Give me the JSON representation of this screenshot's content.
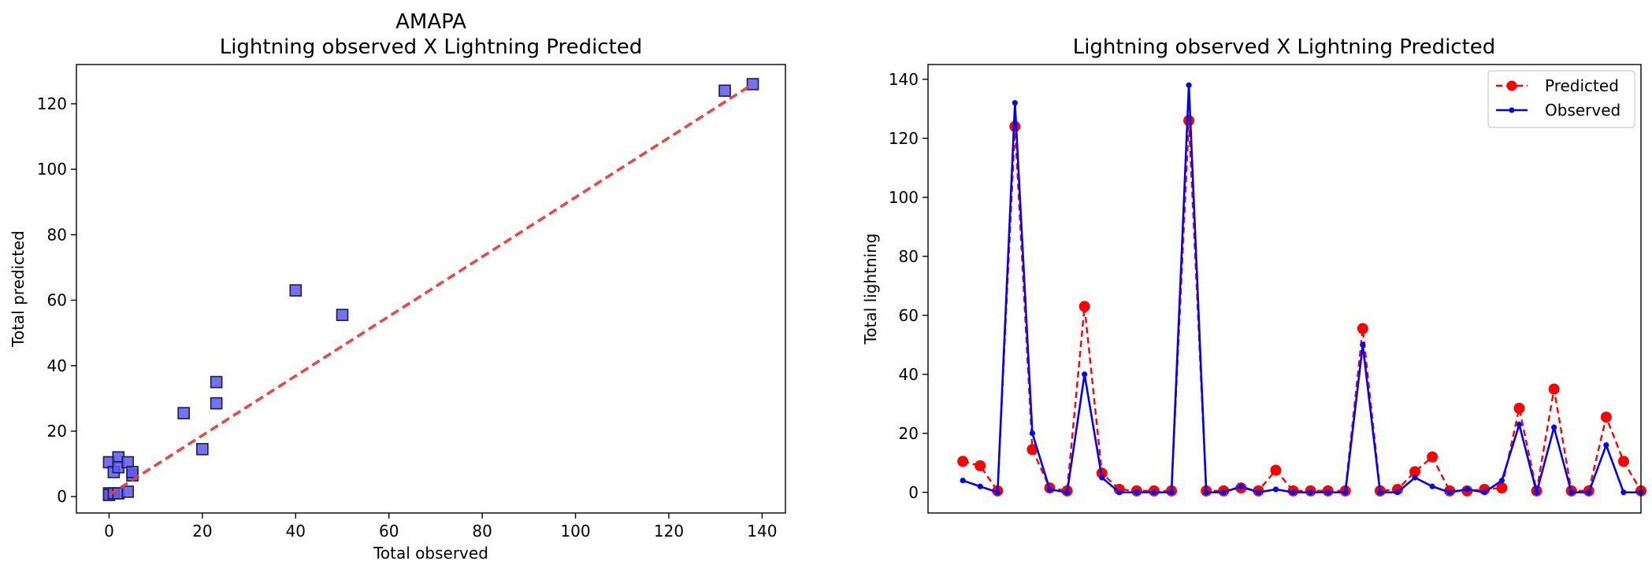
{
  "chart_data": [
    {
      "type": "scatter",
      "title": "AMAPA",
      "subtitle": "Lightning observed X Lightning Predicted",
      "xlabel": "Total observed",
      "ylabel": "Total predicted",
      "xlim": [
        -7,
        145
      ],
      "ylim": [
        -5,
        132
      ],
      "xticks": [
        0,
        20,
        40,
        60,
        80,
        100,
        120,
        140
      ],
      "yticks": [
        0,
        20,
        40,
        60,
        80,
        100,
        120
      ],
      "grid": false,
      "marker_color": "#5a5af0",
      "fit_line_color": "#ee3b3b",
      "fit_line": {
        "x": [
          0,
          138
        ],
        "y": [
          0.5,
          126
        ]
      },
      "points": [
        {
          "x": 0,
          "y": 10.5
        },
        {
          "x": 0,
          "y": 1
        },
        {
          "x": 0,
          "y": 0.5
        },
        {
          "x": 1,
          "y": 1
        },
        {
          "x": 1,
          "y": 7.5
        },
        {
          "x": 2,
          "y": 12
        },
        {
          "x": 2,
          "y": 9
        },
        {
          "x": 2,
          "y": 1
        },
        {
          "x": 4,
          "y": 10.5
        },
        {
          "x": 4,
          "y": 1.5
        },
        {
          "x": 5,
          "y": 6.5
        },
        {
          "x": 5,
          "y": 7.5
        },
        {
          "x": 16,
          "y": 25.5
        },
        {
          "x": 20,
          "y": 14.5
        },
        {
          "x": 23,
          "y": 28.5
        },
        {
          "x": 23,
          "y": 35
        },
        {
          "x": 40,
          "y": 63
        },
        {
          "x": 50,
          "y": 55.5
        },
        {
          "x": 132,
          "y": 124
        },
        {
          "x": 138,
          "y": 126
        }
      ]
    },
    {
      "type": "line",
      "title": "Lightning observed X Lightning Predicted",
      "xlabel": "",
      "ylabel": "Total lightning",
      "xlim": [
        -2,
        39
      ],
      "ylim": [
        -7,
        145
      ],
      "yticks": [
        0,
        20,
        40,
        60,
        80,
        100,
        120,
        140
      ],
      "xticks_visible": false,
      "grid": false,
      "legend_position": "top-right",
      "series": [
        {
          "name": "Predicted",
          "color": "#ff0000",
          "style": "dashed",
          "values": [
            10.5,
            9,
            0.5,
            124,
            14.5,
            1.5,
            0.5,
            63,
            6.5,
            1,
            0.5,
            0.5,
            0.5,
            126,
            0.5,
            0.5,
            1.5,
            0.5,
            7.5,
            0.5,
            0.5,
            0.5,
            0.5,
            55.5,
            0.5,
            1,
            7,
            12,
            0.5,
            0.5,
            1,
            1.5,
            28.5,
            0.5,
            35,
            0.5,
            0.5,
            25.5,
            10.5,
            0.5
          ]
        },
        {
          "name": "Observed",
          "color": "#0000ff",
          "style": "solid",
          "values": [
            4,
            2,
            0,
            132,
            20,
            1,
            0,
            40,
            5,
            0,
            0,
            0,
            0,
            138,
            0,
            0,
            2,
            0,
            1,
            0,
            0,
            0,
            0,
            50,
            0,
            0,
            5,
            2,
            0,
            1,
            0,
            4,
            23,
            0,
            22,
            0,
            0,
            16,
            0,
            0
          ]
        }
      ]
    }
  ]
}
